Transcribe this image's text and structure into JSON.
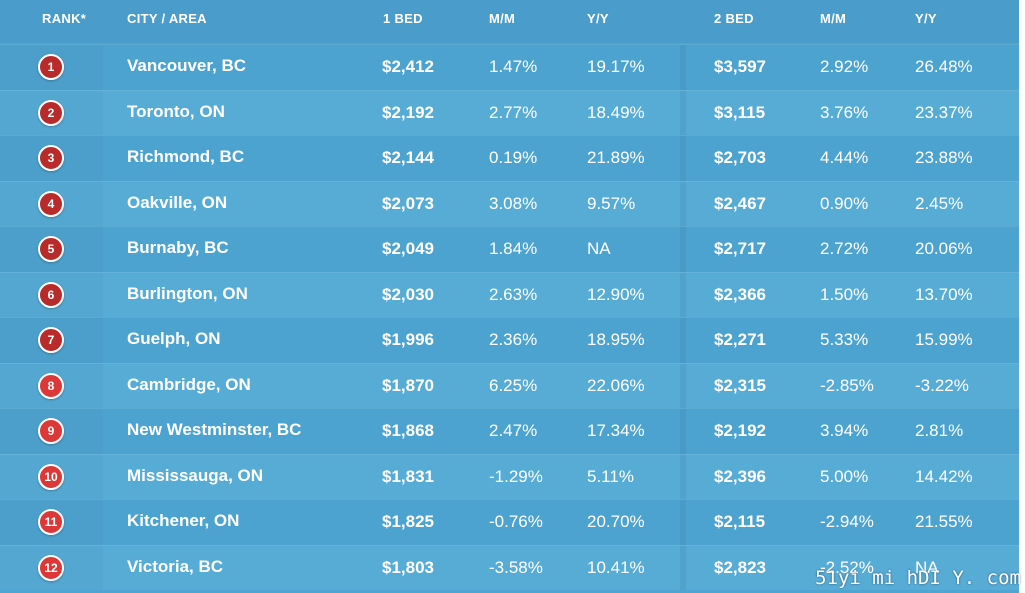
{
  "headers": {
    "rank": "RANK*",
    "city": "CITY / AREA",
    "one_bed": "1 BED",
    "mm1": "M/M",
    "yy1": "Y/Y",
    "two_bed": "2 BED",
    "mm2": "M/M",
    "yy2": "Y/Y"
  },
  "colors": {
    "rank_badge_dark": "#b92a2a",
    "rank_badge_light": "#dd3838",
    "table_bg": "#4ea5d1"
  },
  "rows": [
    {
      "rank": "1",
      "city": "Vancouver, BC",
      "one_bed": "$2,412",
      "mm1": "1.47%",
      "yy1": "19.17%",
      "two_bed": "$3,597",
      "mm2": "2.92%",
      "yy2": "26.48%"
    },
    {
      "rank": "2",
      "city": "Toronto, ON",
      "one_bed": "$2,192",
      "mm1": "2.77%",
      "yy1": "18.49%",
      "two_bed": "$3,115",
      "mm2": "3.76%",
      "yy2": "23.37%"
    },
    {
      "rank": "3",
      "city": "Richmond, BC",
      "one_bed": "$2,144",
      "mm1": "0.19%",
      "yy1": "21.89%",
      "two_bed": "$2,703",
      "mm2": "4.44%",
      "yy2": "23.88%"
    },
    {
      "rank": "4",
      "city": "Oakville, ON",
      "one_bed": "$2,073",
      "mm1": "3.08%",
      "yy1": "9.57%",
      "two_bed": "$2,467",
      "mm2": "0.90%",
      "yy2": "2.45%"
    },
    {
      "rank": "5",
      "city": "Burnaby, BC",
      "one_bed": "$2,049",
      "mm1": "1.84%",
      "yy1": "NA",
      "two_bed": "$2,717",
      "mm2": "2.72%",
      "yy2": "20.06%"
    },
    {
      "rank": "6",
      "city": "Burlington, ON",
      "one_bed": "$2,030",
      "mm1": "2.63%",
      "yy1": "12.90%",
      "two_bed": "$2,366",
      "mm2": "1.50%",
      "yy2": "13.70%"
    },
    {
      "rank": "7",
      "city": "Guelph, ON",
      "one_bed": "$1,996",
      "mm1": "2.36%",
      "yy1": "18.95%",
      "two_bed": "$2,271",
      "mm2": "5.33%",
      "yy2": "15.99%"
    },
    {
      "rank": "8",
      "city": "Cambridge, ON",
      "one_bed": "$1,870",
      "mm1": "6.25%",
      "yy1": "22.06%",
      "two_bed": "$2,315",
      "mm2": "-2.85%",
      "yy2": "-3.22%"
    },
    {
      "rank": "9",
      "city": "New Westminster, BC",
      "one_bed": "$1,868",
      "mm1": "2.47%",
      "yy1": "17.34%",
      "two_bed": "$2,192",
      "mm2": "3.94%",
      "yy2": "2.81%"
    },
    {
      "rank": "10",
      "city": "Mississauga, ON",
      "one_bed": "$1,831",
      "mm1": "-1.29%",
      "yy1": "5.11%",
      "two_bed": "$2,396",
      "mm2": "5.00%",
      "yy2": "14.42%"
    },
    {
      "rank": "11",
      "city": "Kitchener, ON",
      "one_bed": "$1,825",
      "mm1": "-0.76%",
      "yy1": "20.70%",
      "two_bed": "$2,115",
      "mm2": "-2.94%",
      "yy2": "21.55%"
    },
    {
      "rank": "12",
      "city": "Victoria, BC",
      "one_bed": "$1,803",
      "mm1": "-3.58%",
      "yy1": "10.41%",
      "two_bed": "$2,823",
      "mm2": "-2.52%",
      "yy2": "NA"
    }
  ],
  "watermark": "51yi mi hDI Y. com"
}
